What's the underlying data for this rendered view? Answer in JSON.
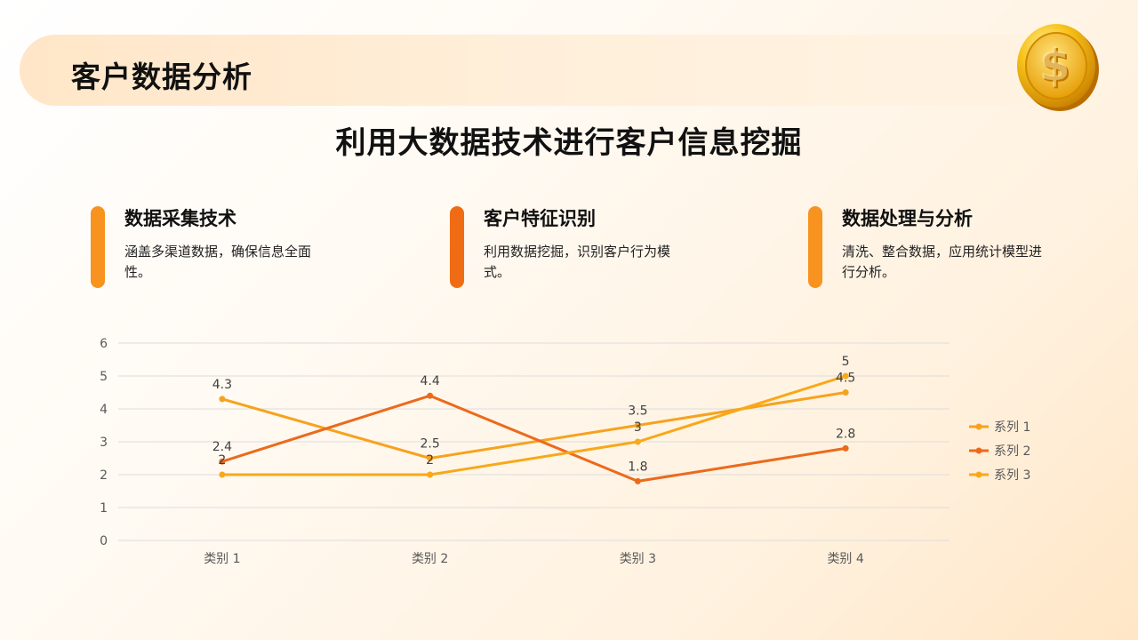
{
  "header": {
    "title": "客户数据分析"
  },
  "subtitle": "利用大数据技术进行客户信息挖掘",
  "cards": [
    {
      "title": "数据采集技术",
      "desc": "涵盖多渠道数据，确保信息全面性。",
      "color": "#f7931e"
    },
    {
      "title": "客户特征识别",
      "desc": "利用数据挖掘，识别客户行为模式。",
      "color": "#ef6c14"
    },
    {
      "title": "数据处理与分析",
      "desc": "清洗、整合数据，应用统计模型进行分析。",
      "color": "#f7931e"
    }
  ],
  "coin_icon": "dollar-coin-icon",
  "chart_data": {
    "type": "line",
    "categories": [
      "类别 1",
      "类别 2",
      "类别 3",
      "类别 4"
    ],
    "ylim": [
      0,
      6
    ],
    "yticks": [
      0,
      1,
      2,
      3,
      4,
      5,
      6
    ],
    "grid": true,
    "legend": "right",
    "series": [
      {
        "name": "系列 1",
        "values": [
          4.3,
          2.5,
          3.5,
          4.5
        ],
        "color": "#f7a21e"
      },
      {
        "name": "系列 2",
        "values": [
          2.4,
          4.4,
          1.8,
          2.8
        ],
        "color": "#ec6a1c"
      },
      {
        "name": "系列 3",
        "values": [
          2,
          2,
          3,
          5
        ],
        "color": "#f8a818"
      }
    ]
  }
}
